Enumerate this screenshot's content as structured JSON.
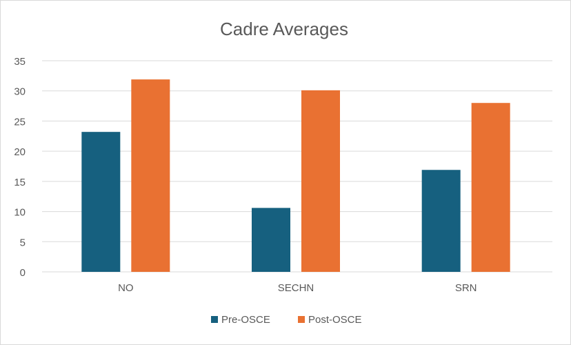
{
  "chart_data": {
    "type": "bar",
    "title": "Cadre Averages",
    "xlabel": "",
    "ylabel": "",
    "categories": [
      "NO",
      "SECHN",
      "SRN"
    ],
    "series": [
      {
        "name": "Pre-OSCE",
        "color": "#16607f",
        "values": [
          23.2,
          10.6,
          16.9
        ]
      },
      {
        "name": "Post-OSCE",
        "color": "#e97132",
        "values": [
          31.9,
          30.1,
          28.0
        ]
      }
    ],
    "ylim": [
      0,
      35
    ],
    "yticks": [
      "0",
      "5",
      "10",
      "15",
      "20",
      "25",
      "30",
      "35"
    ],
    "grid": true,
    "legend": "bottom"
  }
}
